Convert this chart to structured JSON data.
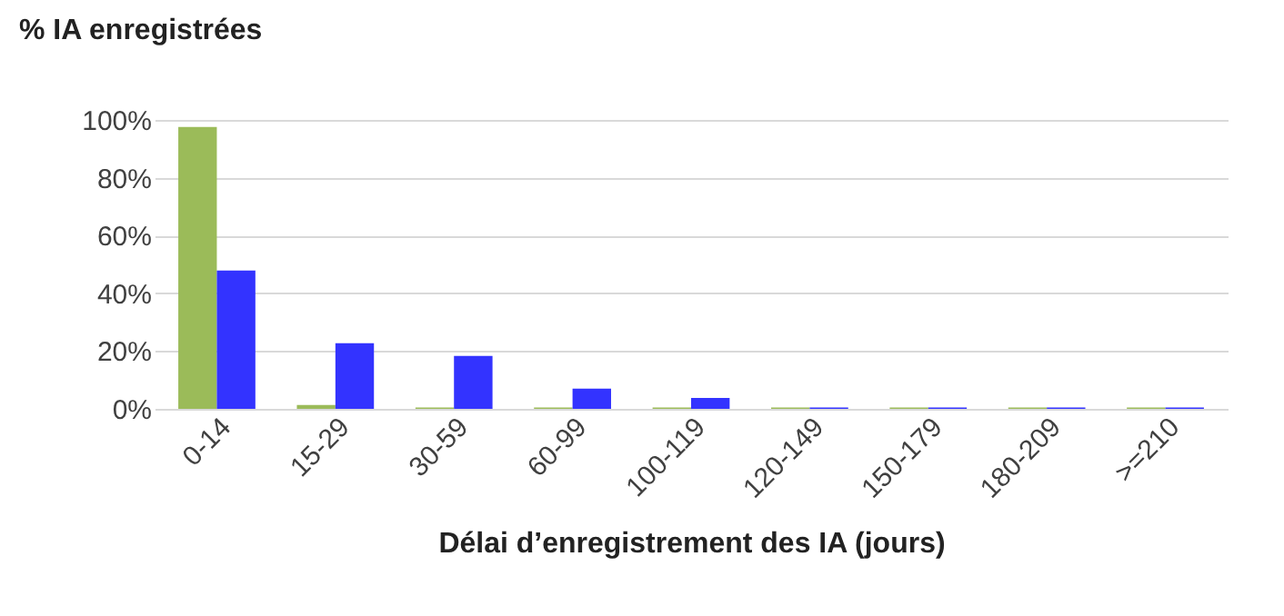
{
  "chart_data": {
    "type": "bar",
    "ylabel": "% IA enregistrées",
    "xlabel": "Délai d’enregistrement des IA (jours)",
    "categories": [
      "0-14",
      "15-29",
      "30-59",
      "60-99",
      "100-119",
      "120-149",
      "150-179",
      "180-209",
      ">=210"
    ],
    "series": [
      {
        "color": "#9bbb59",
        "values": [
          97.6,
          1.3,
          0.5,
          0.5,
          0.5,
          0.5,
          0.5,
          0.5,
          0.5
        ]
      },
      {
        "color": "#3333ff",
        "values": [
          47.9,
          22.7,
          18.3,
          7.0,
          3.8,
          0.5,
          0.5,
          0.5,
          0.5
        ]
      }
    ],
    "ylim": [
      0,
      100
    ],
    "yticks": [
      {
        "value": 0,
        "label": "0%"
      },
      {
        "value": 20,
        "label": "20%"
      },
      {
        "value": 40,
        "label": "40%"
      },
      {
        "value": 60,
        "label": "60%"
      },
      {
        "value": 80,
        "label": "80%"
      },
      {
        "value": 100,
        "label": "100%"
      }
    ],
    "grid": "y",
    "legend": false
  }
}
